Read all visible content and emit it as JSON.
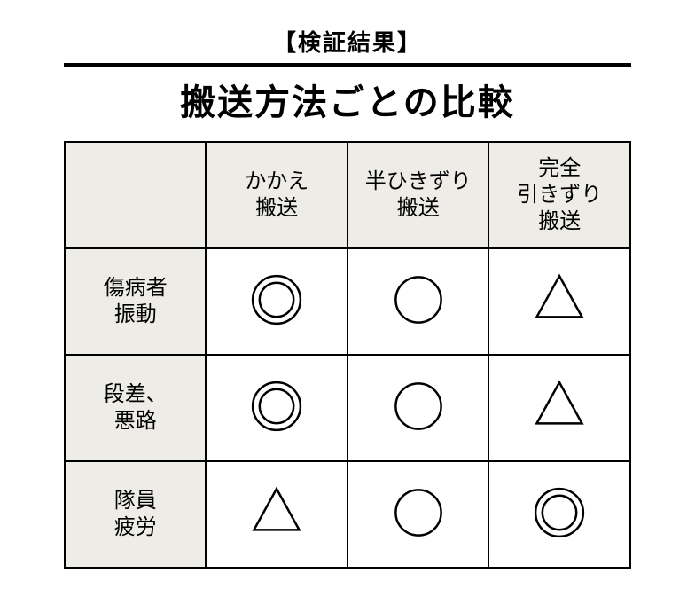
{
  "supertitle": "【検証結果】",
  "title": "搬送方法ごとの比較",
  "table": {
    "columns": [
      "かかえ\n搬送",
      "半ひきずり\n搬送",
      "完全\n引きずり\n搬送"
    ],
    "rows": [
      {
        "label": "傷病者\n振動",
        "cells": [
          "double-circle",
          "circle",
          "triangle"
        ]
      },
      {
        "label": "段差、\n悪路",
        "cells": [
          "double-circle",
          "circle",
          "triangle"
        ]
      },
      {
        "label": "隊員\n疲労",
        "cells": [
          "triangle",
          "circle",
          "double-circle"
        ]
      }
    ]
  },
  "style": {
    "header_bg": "#eeece7",
    "border_color": "#000000",
    "symbol_color": "#000000",
    "symbol_size": 64,
    "stroke_width": 2.5
  }
}
